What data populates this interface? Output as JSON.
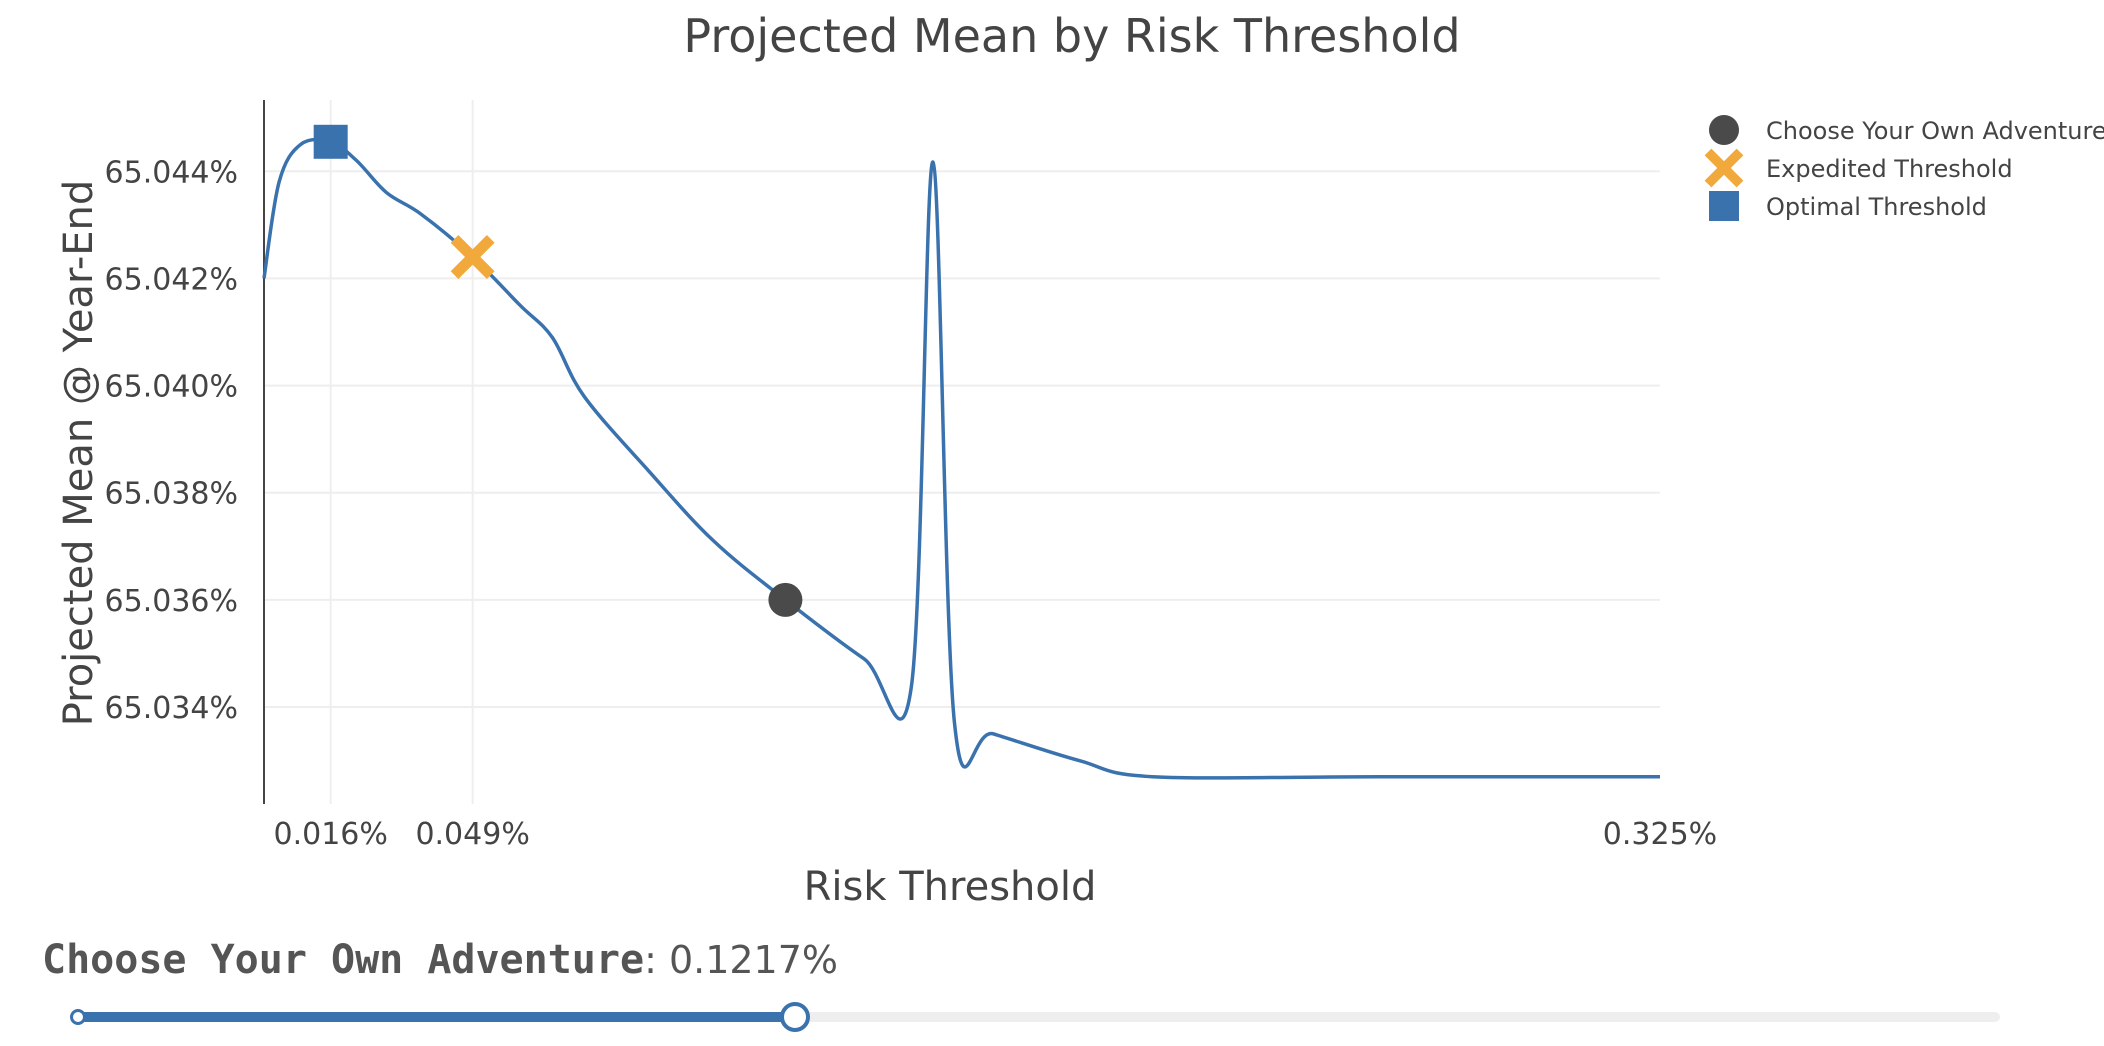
{
  "chart_data": {
    "type": "line",
    "title": "Projected Mean by Risk Threshold",
    "xlabel": "Risk Threshold",
    "ylabel": "Projected Mean @ Year-End",
    "xlim": [
      0.0005,
      0.325
    ],
    "ylim": [
      65.03219,
      65.04533
    ],
    "x_ticks": [
      {
        "value": 0.016,
        "label": "0.016%"
      },
      {
        "value": 0.049,
        "label": "0.049%"
      },
      {
        "value": 0.325,
        "label": "0.325%"
      }
    ],
    "y_ticks": [
      {
        "value": 65.034,
        "label": "65.034%"
      },
      {
        "value": 65.036,
        "label": "65.036%"
      },
      {
        "value": 65.038,
        "label": "65.038%"
      },
      {
        "value": 65.04,
        "label": "65.040%"
      },
      {
        "value": 65.042,
        "label": "65.042%"
      },
      {
        "value": 65.044,
        "label": "65.044%"
      }
    ],
    "grid": true,
    "legend_position": "top-right",
    "series": [
      {
        "name": "",
        "color": "#3a72ae",
        "x": [
          0.0005,
          0.004,
          0.009,
          0.016,
          0.022,
          0.029,
          0.037,
          0.049,
          0.06,
          0.0675,
          0.0749,
          0.09,
          0.105,
          0.1217,
          0.14,
          0.151,
          0.156,
          0.161,
          0.17,
          0.19,
          0.207,
          0.26,
          0.325
        ],
        "y": [
          65.042,
          65.0438,
          65.0445,
          65.04455,
          65.0442,
          65.0436,
          65.0432,
          65.0424,
          65.0415,
          65.0409,
          65.0398,
          65.0384,
          65.0371,
          65.036,
          65.0349,
          65.0344,
          65.04417,
          65.0337,
          65.0335,
          65.033,
          65.0327,
          65.0327,
          65.0327
        ]
      }
    ],
    "markers": [
      {
        "name": "Choose Your Own Adventure",
        "shape": "circle",
        "color": "#4a4a4a",
        "x": 0.1217,
        "y": 65.036
      },
      {
        "name": "Expedited Threshold",
        "shape": "x",
        "color": "#f2a93b",
        "x": 0.049,
        "y": 65.0424
      },
      {
        "name": "Optimal Threshold",
        "shape": "square",
        "color": "#3a72ae",
        "x": 0.016,
        "y": 65.04455
      }
    ]
  },
  "slider": {
    "label_name": "Choose Your Own Adventure",
    "label_value": ": 0.1217%",
    "min": 0.0005,
    "max": 0.325,
    "value": 0.1217,
    "fill_color": "#3a72ae",
    "track_color": "#eeeeee"
  }
}
